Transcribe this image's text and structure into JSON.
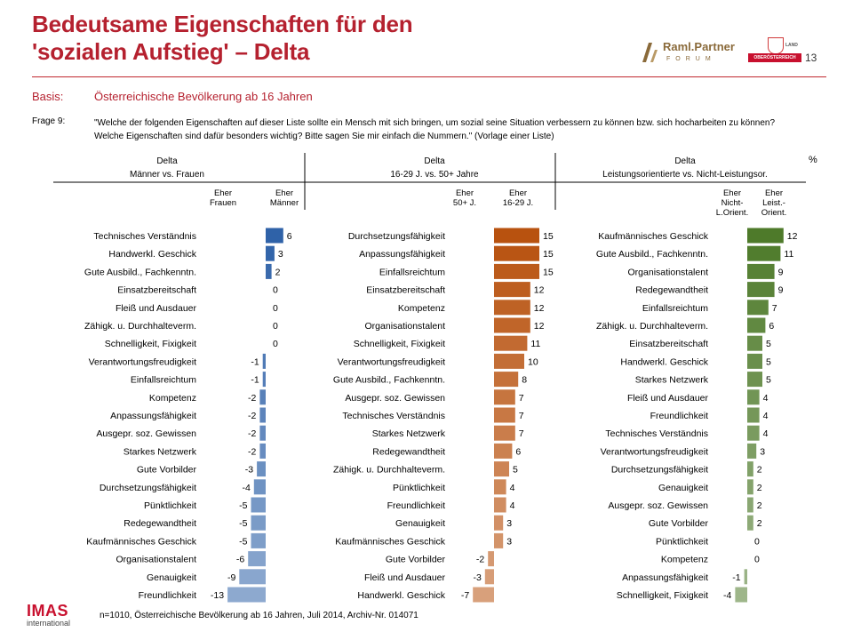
{
  "page": {
    "title_line1": "Bedeutsame Eigenschaften für den",
    "title_line2": "'sozialen Aufstieg' – Delta",
    "page_number": "13",
    "logo_raml": "Raml.Partner",
    "logo_raml_sub": "FORUM",
    "logo_ooe": "OBERÖSTERREICH",
    "logo_ooe_land": "LAND",
    "basis_label": "Basis:",
    "basis_text": "Österreichische Bevölkerung ab 16 Jahren",
    "frage_label": "Frage 9:",
    "frage_text": "\"Welche der folgenden Eigenschaften auf dieser Liste sollte ein Mensch mit sich bringen, um sozial seine Situation verbessern zu können bzw. sich hocharbeiten zu können? Welche Eigenschaften sind dafür besonders wichtig? Bitte sagen Sie mir einfach die Nummern.\" (Vorlage einer Liste)",
    "unit": "%",
    "footer_logo": "IMAS",
    "footer_logo_sub": "international",
    "footer": "n=1010, Österreichische Bevölkerung ab 16 Jahren, Juli 2014, Archiv-Nr. 014071",
    "colors": {
      "title": "#b5212f",
      "blue": "#2f62a8",
      "orange": "#b8520f",
      "green": "#4e7a2a"
    }
  },
  "chart_data": [
    {
      "type": "bar",
      "header": [
        "Delta",
        "Männer vs. Frauen"
      ],
      "side_negative": [
        "Eher",
        "Frauen"
      ],
      "side_positive": [
        "Eher",
        "Männer"
      ],
      "color": "#2f62a8",
      "categories": [
        "Technisches Verständnis",
        "Handwerkl. Geschick",
        "Gute Ausbild., Fachkenntn.",
        "Einsatzbereitschaft",
        "Fleiß und Ausdauer",
        "Zähigk. u. Durchhalteverm.",
        "Schnelligkeit, Fixigkeit",
        "Verantwortungsfreudigkeit",
        "Einfallsreichtum",
        "Kompetenz",
        "Anpassungsfähigkeit",
        "Ausgepr. soz. Gewissen",
        "Starkes Netzwerk",
        "Gute Vorbilder",
        "Durchsetzungsfähigkeit",
        "Pünktlichkeit",
        "Redegewandtheit",
        "Kaufmännisches Geschick",
        "Organisationstalent",
        "Genauigkeit",
        "Freundlichkeit"
      ],
      "values": [
        6,
        3,
        2,
        0,
        0,
        0,
        0,
        -1,
        -1,
        -2,
        -2,
        -2,
        -2,
        -3,
        -4,
        -5,
        -5,
        -5,
        -6,
        -9,
        -13
      ]
    },
    {
      "type": "bar",
      "header": [
        "Delta",
        "16-29 J. vs. 50+ Jahre"
      ],
      "side_negative": [
        "Eher",
        "50+ J."
      ],
      "side_positive": [
        "Eher",
        "16-29 J."
      ],
      "color": "#b8520f",
      "categories": [
        "Durchsetzungsfähigkeit",
        "Anpassungsfähigkeit",
        "Einfallsreichtum",
        "Einsatzbereitschaft",
        "Kompetenz",
        "Organisationstalent",
        "Schnelligkeit, Fixigkeit",
        "Verantwortungsfreudigkeit",
        "Gute Ausbild., Fachkenntn.",
        "Ausgepr. soz. Gewissen",
        "Technisches Verständnis",
        "Starkes Netzwerk",
        "Redegewandtheit",
        "Zähigk. u. Durchhalteverm.",
        "Pünktlichkeit",
        "Freundlichkeit",
        "Genauigkeit",
        "Kaufmännisches Geschick",
        "Gute Vorbilder",
        "Fleiß und Ausdauer",
        "Handwerkl. Geschick"
      ],
      "values": [
        15,
        15,
        15,
        12,
        12,
        12,
        11,
        10,
        8,
        7,
        7,
        7,
        6,
        5,
        4,
        4,
        3,
        3,
        -2,
        -3,
        -7
      ]
    },
    {
      "type": "bar",
      "header": [
        "Delta",
        "Leistungsorientierte vs. Nicht-Leistungsor."
      ],
      "side_negative": [
        "Eher",
        "Nicht-",
        "L.Orient."
      ],
      "side_positive": [
        "Eher",
        "Leist.-",
        "Orient."
      ],
      "color": "#4e7a2a",
      "categories": [
        "Kaufmännisches Geschick",
        "Gute Ausbild., Fachkenntn.",
        "Organisationstalent",
        "Redegewandtheit",
        "Einfallsreichtum",
        "Zähigk. u. Durchhalteverm.",
        "Einsatzbereitschaft",
        "Handwerkl. Geschick",
        "Starkes Netzwerk",
        "Fleiß und Ausdauer",
        "Freundlichkeit",
        "Technisches Verständnis",
        "Verantwortungsfreudigkeit",
        "Durchsetzungsfähigkeit",
        "Genauigkeit",
        "Ausgepr. soz. Gewissen",
        "Gute Vorbilder",
        "Pünktlichkeit",
        "Kompetenz",
        "Anpassungsfähigkeit",
        "Schnelligkeit, Fixigkeit"
      ],
      "values": [
        12,
        11,
        9,
        9,
        7,
        6,
        5,
        5,
        5,
        4,
        4,
        4,
        3,
        2,
        2,
        2,
        2,
        0,
        0,
        -1,
        -4
      ]
    }
  ]
}
